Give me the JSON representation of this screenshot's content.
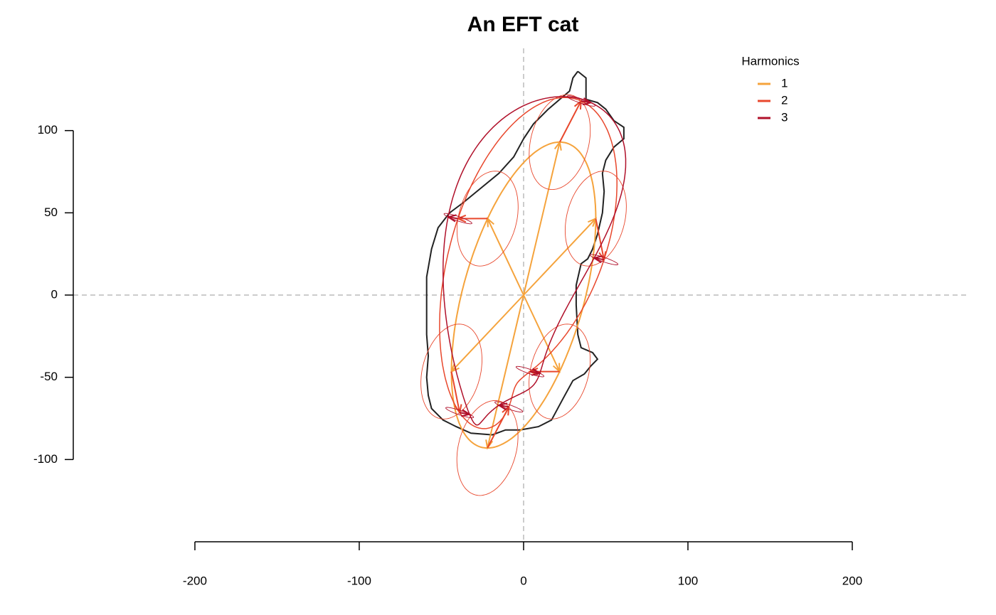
{
  "chart_data": {
    "type": "eft",
    "title": "An EFT cat",
    "legend_title": "Harmonics",
    "legend_position": "topright",
    "xlim": [
      -274,
      271
    ],
    "ylim": [
      -150,
      150
    ],
    "xticks": [
      -200,
      -100,
      0,
      100,
      200
    ],
    "yticks": [
      -100,
      -50,
      0,
      50,
      100
    ],
    "outline": {
      "color": "#222222",
      "x": [
        33,
        38,
        38,
        45,
        50,
        55,
        61,
        61,
        55,
        50,
        48,
        49,
        48,
        45,
        42,
        39,
        35,
        32,
        32,
        33,
        35,
        42,
        45,
        41,
        37,
        30,
        24,
        17,
        9,
        -2,
        -11,
        -19,
        -32,
        -41,
        -49,
        -56,
        -58,
        -59,
        -58,
        -59,
        -59,
        -59,
        -56,
        -52,
        -45,
        -37,
        -26,
        -15,
        -6,
        0,
        6,
        15,
        22,
        28,
        30,
        33
      ],
      "y": [
        136,
        132,
        119,
        117,
        113,
        106,
        102,
        95,
        90,
        82,
        74,
        63,
        50,
        37,
        28,
        22,
        19,
        6,
        -6,
        -24,
        -32,
        -35,
        -39,
        -43,
        -48,
        -52,
        -63,
        -76,
        -80,
        -82,
        -82,
        -85,
        -84,
        -80,
        -76,
        -69,
        -61,
        -50,
        -37,
        -24,
        -6,
        11,
        28,
        41,
        50,
        56,
        65,
        74,
        84,
        95,
        104,
        113,
        119,
        124,
        132,
        136
      ]
    },
    "series": [
      {
        "name": "1",
        "color": "#F5A33C",
        "values": [
          22,
          -38,
          93,
          0
        ]
      },
      {
        "name": "2",
        "color": "#E8472C",
        "values": [
          13,
          -13.3,
          25,
          14.4
        ]
      },
      {
        "name": "3",
        "color": "#B0102A",
        "values": [
          6,
          -6,
          -1,
          3
        ]
      }
    ]
  }
}
